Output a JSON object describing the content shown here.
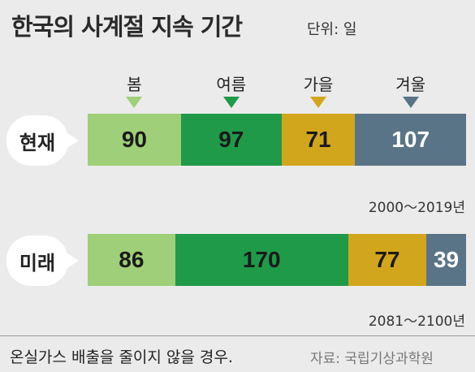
{
  "header": {
    "title": "한국의 사계절 지속 기간",
    "unit": "단위: 일"
  },
  "chart_data": {
    "type": "bar",
    "stacked": true,
    "orientation": "horizontal",
    "categories": [
      "봄",
      "여름",
      "가을",
      "겨울"
    ],
    "colors": [
      "#9fcf78",
      "#1f9a48",
      "#d2a61c",
      "#5a7487"
    ],
    "rows": [
      {
        "label": "현재",
        "period": "2000～2019년",
        "values": [
          90,
          97,
          71,
          107
        ]
      },
      {
        "label": "미래",
        "period": "2081～2100년",
        "values": [
          86,
          170,
          77,
          39
        ]
      }
    ]
  },
  "footer": {
    "note": "온실가스 배출을 줄이지 않을 경우.",
    "source": "자료: 국립기상과학원"
  }
}
